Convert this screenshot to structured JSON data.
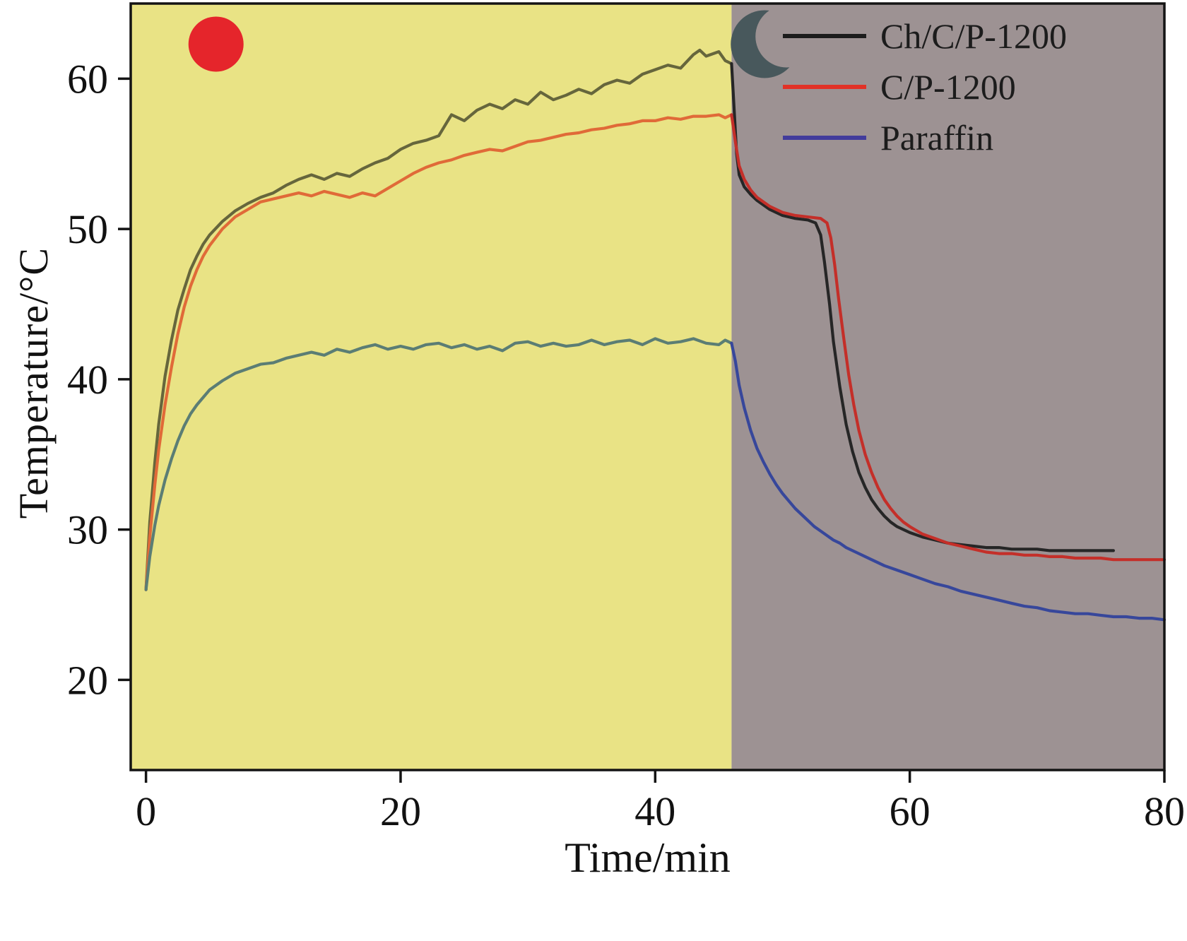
{
  "chart_data": {
    "type": "line",
    "title": "",
    "xlabel": "Time/min",
    "ylabel": "Temperature/°C",
    "xlim": [
      -1.2,
      80
    ],
    "ylim": [
      14,
      65
    ],
    "x_ticks": [
      0,
      20,
      40,
      60,
      80
    ],
    "y_ticks": [
      20,
      30,
      40,
      50,
      60
    ],
    "grid": false,
    "legend_position": "top-right",
    "region_boundary": 46,
    "regions": [
      {
        "name": "light-on-phase",
        "x0": -1.2,
        "x1": 46,
        "color": "#e9e385",
        "icon": "sun"
      },
      {
        "name": "light-off-phase",
        "x0": 46,
        "x1": 80,
        "color": "#9d9293",
        "icon": "moon"
      }
    ],
    "icons": {
      "sun_color": "#e5252b",
      "moon_color": "#48585c"
    },
    "series": [
      {
        "name": "Ch/C/P-1200",
        "legend_color": "#1c1c1c",
        "color_heat": "#66663c",
        "color_cool": "#262626",
        "points": [
          [
            0,
            26
          ],
          [
            0.3,
            30.5
          ],
          [
            0.7,
            34.5
          ],
          [
            1,
            37
          ],
          [
            1.5,
            40.2
          ],
          [
            2,
            42.6
          ],
          [
            2.5,
            44.6
          ],
          [
            3,
            46
          ],
          [
            3.5,
            47.3
          ],
          [
            4,
            48.2
          ],
          [
            4.5,
            49
          ],
          [
            5,
            49.6
          ],
          [
            6,
            50.5
          ],
          [
            7,
            51.2
          ],
          [
            8,
            51.7
          ],
          [
            9,
            52.1
          ],
          [
            10,
            52.4
          ],
          [
            11,
            52.9
          ],
          [
            12,
            53.3
          ],
          [
            13,
            53.6
          ],
          [
            14,
            53.3
          ],
          [
            15,
            53.7
          ],
          [
            16,
            53.5
          ],
          [
            17,
            54
          ],
          [
            18,
            54.4
          ],
          [
            19,
            54.7
          ],
          [
            20,
            55.3
          ],
          [
            21,
            55.7
          ],
          [
            22,
            55.9
          ],
          [
            23,
            56.2
          ],
          [
            24,
            57.6
          ],
          [
            25,
            57.2
          ],
          [
            26,
            57.9
          ],
          [
            27,
            58.3
          ],
          [
            28,
            58
          ],
          [
            29,
            58.6
          ],
          [
            30,
            58.3
          ],
          [
            31,
            59.1
          ],
          [
            32,
            58.6
          ],
          [
            33,
            58.9
          ],
          [
            34,
            59.3
          ],
          [
            35,
            59
          ],
          [
            36,
            59.6
          ],
          [
            37,
            59.9
          ],
          [
            38,
            59.7
          ],
          [
            39,
            60.3
          ],
          [
            40,
            60.6
          ],
          [
            41,
            60.9
          ],
          [
            42,
            60.7
          ],
          [
            43,
            61.6
          ],
          [
            43.5,
            61.9
          ],
          [
            44,
            61.5
          ],
          [
            45,
            61.8
          ],
          [
            45.5,
            61.2
          ],
          [
            46,
            61
          ],
          [
            46.2,
            58
          ],
          [
            46.4,
            55
          ],
          [
            46.6,
            53.6
          ],
          [
            47,
            52.8
          ],
          [
            47.5,
            52.3
          ],
          [
            48,
            51.9
          ],
          [
            49,
            51.3
          ],
          [
            50,
            50.9
          ],
          [
            51,
            50.7
          ],
          [
            52,
            50.6
          ],
          [
            52.6,
            50.4
          ],
          [
            53,
            49.6
          ],
          [
            53.3,
            47.8
          ],
          [
            53.7,
            45
          ],
          [
            54,
            42.5
          ],
          [
            54.5,
            39.5
          ],
          [
            55,
            37
          ],
          [
            55.5,
            35.2
          ],
          [
            56,
            33.8
          ],
          [
            56.5,
            32.8
          ],
          [
            57,
            32
          ],
          [
            57.5,
            31.4
          ],
          [
            58,
            30.9
          ],
          [
            58.5,
            30.5
          ],
          [
            59,
            30.2
          ],
          [
            60,
            29.8
          ],
          [
            61,
            29.5
          ],
          [
            62,
            29.3
          ],
          [
            63,
            29.1
          ],
          [
            64,
            29
          ],
          [
            65,
            28.9
          ],
          [
            66,
            28.8
          ],
          [
            67,
            28.8
          ],
          [
            68,
            28.7
          ],
          [
            69,
            28.7
          ],
          [
            70,
            28.7
          ],
          [
            71,
            28.6
          ],
          [
            72,
            28.6
          ],
          [
            73,
            28.6
          ],
          [
            74,
            28.6
          ],
          [
            75,
            28.6
          ],
          [
            76,
            28.6
          ]
        ]
      },
      {
        "name": "C/P-1200",
        "legend_color": "#e23227",
        "color_heat": "#e06a38",
        "color_cool": "#c42f29",
        "points": [
          [
            0,
            26
          ],
          [
            0.3,
            29.5
          ],
          [
            0.7,
            33
          ],
          [
            1,
            35.3
          ],
          [
            1.5,
            38.3
          ],
          [
            2,
            40.8
          ],
          [
            2.5,
            43
          ],
          [
            3,
            44.8
          ],
          [
            3.5,
            46.2
          ],
          [
            4,
            47.3
          ],
          [
            4.5,
            48.2
          ],
          [
            5,
            48.9
          ],
          [
            6,
            50
          ],
          [
            7,
            50.8
          ],
          [
            8,
            51.3
          ],
          [
            9,
            51.8
          ],
          [
            10,
            52
          ],
          [
            11,
            52.2
          ],
          [
            12,
            52.4
          ],
          [
            13,
            52.2
          ],
          [
            14,
            52.5
          ],
          [
            15,
            52.3
          ],
          [
            16,
            52.1
          ],
          [
            17,
            52.4
          ],
          [
            18,
            52.2
          ],
          [
            19,
            52.7
          ],
          [
            20,
            53.2
          ],
          [
            21,
            53.7
          ],
          [
            22,
            54.1
          ],
          [
            23,
            54.4
          ],
          [
            24,
            54.6
          ],
          [
            25,
            54.9
          ],
          [
            26,
            55.1
          ],
          [
            27,
            55.3
          ],
          [
            28,
            55.2
          ],
          [
            29,
            55.5
          ],
          [
            30,
            55.8
          ],
          [
            31,
            55.9
          ],
          [
            32,
            56.1
          ],
          [
            33,
            56.3
          ],
          [
            34,
            56.4
          ],
          [
            35,
            56.6
          ],
          [
            36,
            56.7
          ],
          [
            37,
            56.9
          ],
          [
            38,
            57
          ],
          [
            39,
            57.2
          ],
          [
            40,
            57.2
          ],
          [
            41,
            57.4
          ],
          [
            42,
            57.3
          ],
          [
            43,
            57.5
          ],
          [
            44,
            57.5
          ],
          [
            45,
            57.6
          ],
          [
            45.5,
            57.4
          ],
          [
            46,
            57.6
          ],
          [
            46.3,
            55.8
          ],
          [
            46.6,
            54.2
          ],
          [
            47,
            53.3
          ],
          [
            47.5,
            52.6
          ],
          [
            48,
            52.1
          ],
          [
            49,
            51.5
          ],
          [
            50,
            51.1
          ],
          [
            51,
            50.9
          ],
          [
            52,
            50.8
          ],
          [
            53,
            50.7
          ],
          [
            53.5,
            50.4
          ],
          [
            53.8,
            49.4
          ],
          [
            54.1,
            47.6
          ],
          [
            54.4,
            45.4
          ],
          [
            54.8,
            42.8
          ],
          [
            55.2,
            40.3
          ],
          [
            55.6,
            38.3
          ],
          [
            56,
            36.6
          ],
          [
            56.5,
            35
          ],
          [
            57,
            33.8
          ],
          [
            57.5,
            32.8
          ],
          [
            58,
            32
          ],
          [
            58.5,
            31.4
          ],
          [
            59,
            30.9
          ],
          [
            59.5,
            30.5
          ],
          [
            60,
            30.2
          ],
          [
            61,
            29.7
          ],
          [
            62,
            29.4
          ],
          [
            63,
            29.1
          ],
          [
            64,
            28.9
          ],
          [
            65,
            28.7
          ],
          [
            66,
            28.5
          ],
          [
            67,
            28.4
          ],
          [
            68,
            28.4
          ],
          [
            69,
            28.3
          ],
          [
            70,
            28.3
          ],
          [
            71,
            28.2
          ],
          [
            72,
            28.2
          ],
          [
            73,
            28.1
          ],
          [
            74,
            28.1
          ],
          [
            75,
            28.1
          ],
          [
            76,
            28
          ],
          [
            77,
            28
          ],
          [
            78,
            28
          ],
          [
            79,
            28
          ],
          [
            80,
            28
          ]
        ]
      },
      {
        "name": "Paraffin",
        "legend_color": "#423c9c",
        "color_heat": "#5b7d74",
        "color_cool": "#37479b",
        "points": [
          [
            0,
            26
          ],
          [
            0.3,
            28.2
          ],
          [
            0.7,
            30.3
          ],
          [
            1,
            31.6
          ],
          [
            1.5,
            33.3
          ],
          [
            2,
            34.7
          ],
          [
            2.5,
            35.9
          ],
          [
            3,
            36.9
          ],
          [
            3.5,
            37.7
          ],
          [
            4,
            38.3
          ],
          [
            4.5,
            38.8
          ],
          [
            5,
            39.3
          ],
          [
            6,
            39.9
          ],
          [
            7,
            40.4
          ],
          [
            8,
            40.7
          ],
          [
            9,
            41
          ],
          [
            10,
            41.1
          ],
          [
            11,
            41.4
          ],
          [
            12,
            41.6
          ],
          [
            13,
            41.8
          ],
          [
            14,
            41.6
          ],
          [
            15,
            42
          ],
          [
            16,
            41.8
          ],
          [
            17,
            42.1
          ],
          [
            18,
            42.3
          ],
          [
            19,
            42
          ],
          [
            20,
            42.2
          ],
          [
            21,
            42
          ],
          [
            22,
            42.3
          ],
          [
            23,
            42.4
          ],
          [
            24,
            42.1
          ],
          [
            25,
            42.3
          ],
          [
            26,
            42
          ],
          [
            27,
            42.2
          ],
          [
            28,
            41.9
          ],
          [
            29,
            42.4
          ],
          [
            30,
            42.5
          ],
          [
            31,
            42.2
          ],
          [
            32,
            42.4
          ],
          [
            33,
            42.2
          ],
          [
            34,
            42.3
          ],
          [
            35,
            42.6
          ],
          [
            36,
            42.3
          ],
          [
            37,
            42.5
          ],
          [
            38,
            42.6
          ],
          [
            39,
            42.3
          ],
          [
            40,
            42.7
          ],
          [
            41,
            42.4
          ],
          [
            42,
            42.5
          ],
          [
            43,
            42.7
          ],
          [
            44,
            42.4
          ],
          [
            45,
            42.3
          ],
          [
            45.5,
            42.6
          ],
          [
            46,
            42.4
          ],
          [
            46.3,
            41.2
          ],
          [
            46.6,
            39.6
          ],
          [
            47,
            38.1
          ],
          [
            47.5,
            36.6
          ],
          [
            48,
            35.4
          ],
          [
            48.5,
            34.5
          ],
          [
            49,
            33.7
          ],
          [
            49.5,
            33
          ],
          [
            50,
            32.4
          ],
          [
            50.5,
            31.9
          ],
          [
            51,
            31.4
          ],
          [
            51.5,
            31
          ],
          [
            52,
            30.6
          ],
          [
            52.5,
            30.2
          ],
          [
            53,
            29.9
          ],
          [
            53.5,
            29.6
          ],
          [
            54,
            29.3
          ],
          [
            54.5,
            29.1
          ],
          [
            55,
            28.8
          ],
          [
            55.5,
            28.6
          ],
          [
            56,
            28.4
          ],
          [
            57,
            28
          ],
          [
            58,
            27.6
          ],
          [
            59,
            27.3
          ],
          [
            60,
            27
          ],
          [
            61,
            26.7
          ],
          [
            62,
            26.4
          ],
          [
            63,
            26.2
          ],
          [
            64,
            25.9
          ],
          [
            65,
            25.7
          ],
          [
            66,
            25.5
          ],
          [
            67,
            25.3
          ],
          [
            68,
            25.1
          ],
          [
            69,
            24.9
          ],
          [
            70,
            24.8
          ],
          [
            71,
            24.6
          ],
          [
            72,
            24.5
          ],
          [
            73,
            24.4
          ],
          [
            74,
            24.4
          ],
          [
            75,
            24.3
          ],
          [
            76,
            24.2
          ],
          [
            77,
            24.2
          ],
          [
            78,
            24.1
          ],
          [
            79,
            24.1
          ],
          [
            80,
            24
          ]
        ]
      }
    ]
  }
}
